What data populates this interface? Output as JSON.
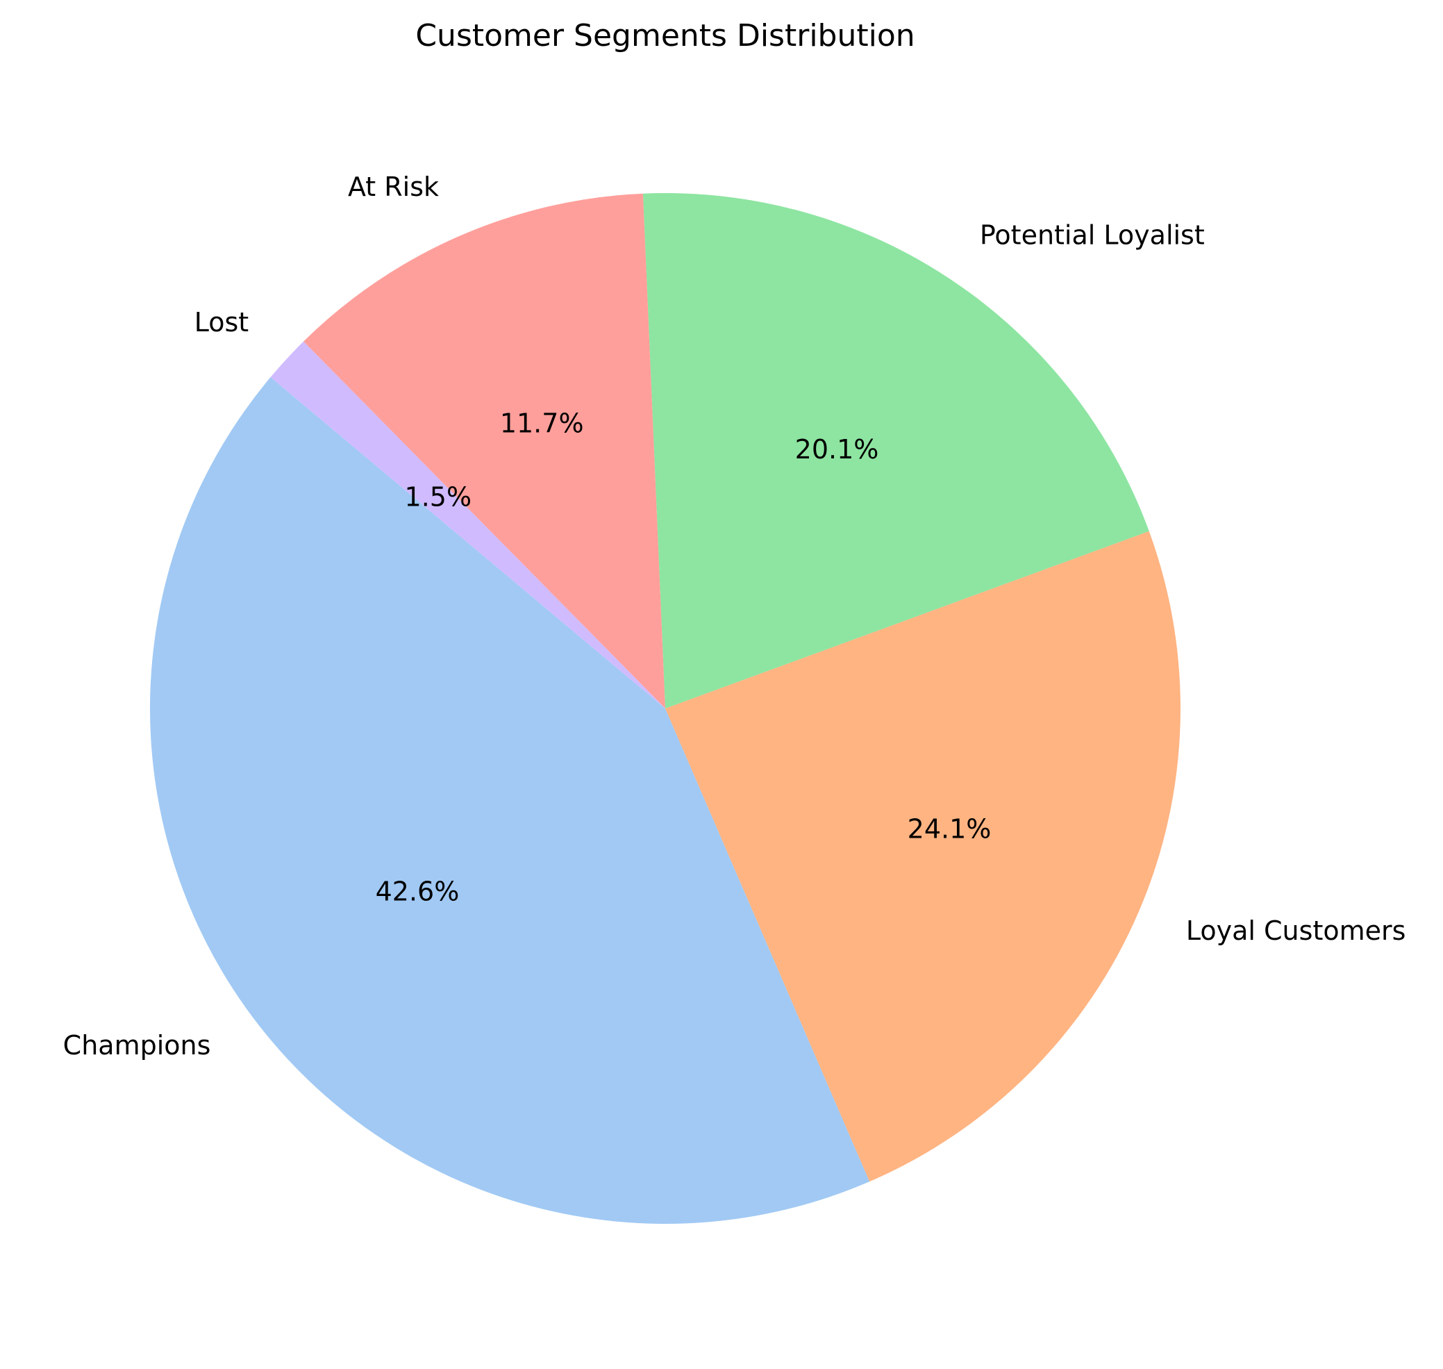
{
  "chart_data": {
    "type": "pie",
    "title": "Customer Segments Distribution",
    "start_angle_deg": 140,
    "direction": "counterclockwise",
    "slices": [
      {
        "label": "Champions",
        "value": 42.6,
        "pct_label": "42.6%",
        "color": "#a1c9f4"
      },
      {
        "label": "Loyal Customers",
        "value": 24.1,
        "pct_label": "24.1%",
        "color": "#ffb482"
      },
      {
        "label": "Potential Loyalist",
        "value": 20.1,
        "pct_label": "20.1%",
        "color": "#8de5a1"
      },
      {
        "label": "At Risk",
        "value": 11.7,
        "pct_label": "11.7%",
        "color": "#ff9f9b"
      },
      {
        "label": "Lost",
        "value": 1.5,
        "pct_label": "1.5%",
        "color": "#d0bbff"
      }
    ]
  }
}
